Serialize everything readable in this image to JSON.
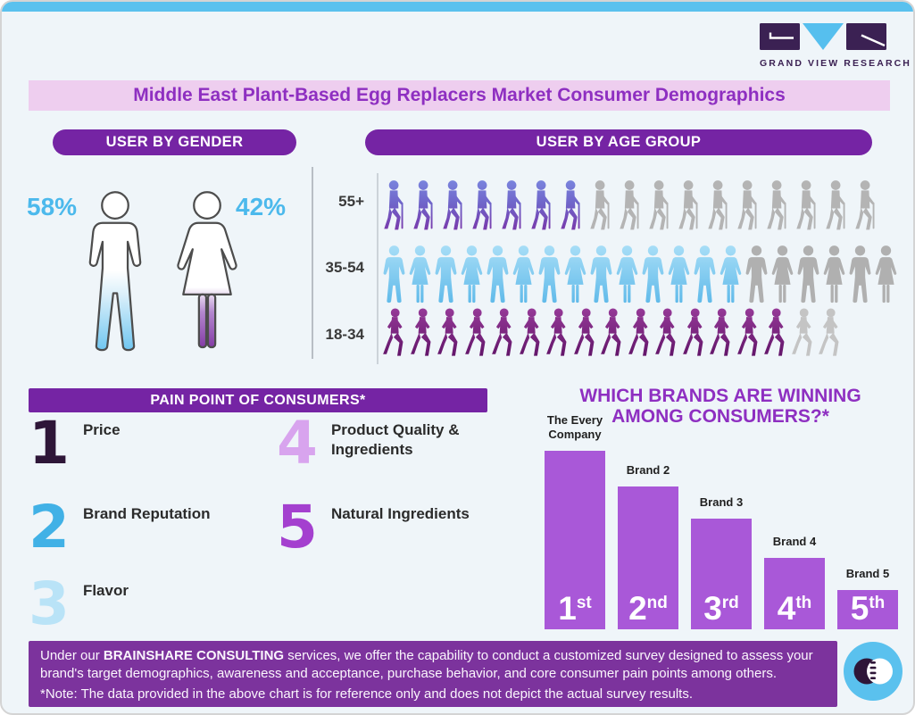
{
  "page": {
    "logo_name": "GRAND VIEW RESEARCH",
    "title": "Middle East Plant-Based Egg Replacers Market Consumer Demographics"
  },
  "sections": {
    "gender": {
      "header": "USER BY GENDER",
      "male_pct_label": "58%",
      "female_pct_label": "42%"
    },
    "age": {
      "header": "USER BY AGE GROUP"
    },
    "pain": {
      "header": "PAIN POINT OF CONSUMERS*",
      "items": [
        {
          "rank": "1",
          "label": "Price",
          "color": "#2e1638"
        },
        {
          "rank": "2",
          "label": "Brand Reputation",
          "color": "#41b1e6"
        },
        {
          "rank": "3",
          "label": "Flavor",
          "color": "#b9e3f7"
        },
        {
          "rank": "4",
          "label": "Product Quality & Ingredients",
          "color": "#d8a4ee"
        },
        {
          "rank": "5",
          "label": "Natural Ingredients",
          "color": "#a440cf"
        }
      ]
    },
    "brands": {
      "title": "WHICH BRANDS ARE WINNING AMONG CONSUMERS?*"
    }
  },
  "chart_data": [
    {
      "type": "pictograph",
      "name": "user-by-gender",
      "title": "USER BY GENDER",
      "categories": [
        "Male",
        "Female"
      ],
      "values_pct": [
        58,
        42
      ],
      "colors": [
        "#56bfee",
        "#7b2d9e"
      ]
    },
    {
      "type": "pictograph",
      "name": "user-by-age-group",
      "title": "USER BY AGE GROUP",
      "rows": [
        {
          "label": "55+",
          "icon": "elderly",
          "filled": 7,
          "total": 17
        },
        {
          "label": "35-54",
          "icon": "adult-pair",
          "filled": 14,
          "total": 20
        },
        {
          "label": "18-34",
          "icon": "walking",
          "filled": 15,
          "total": 17
        }
      ]
    },
    {
      "type": "bar",
      "name": "brand-ranking",
      "title": "WHICH BRANDS ARE WINNING AMONG CONSUMERS?*",
      "categories": [
        "The Every Company",
        "Brand 2",
        "Brand 3",
        "Brand 4",
        "Brand 5"
      ],
      "values_pct_of_max": [
        100,
        80,
        62,
        40,
        22
      ],
      "rank_labels": [
        "1st",
        "2nd",
        "3rd",
        "4th",
        "5th"
      ],
      "bar_color": "#a958d8",
      "ylabel": "",
      "xlabel": "",
      "grid": false,
      "legend": "none"
    }
  ],
  "footer": {
    "text_prefix": "Under our ",
    "text_bold": "BRAINSHARE CONSULTING",
    "text_suffix": " services, we offer the capability to conduct a customized survey designed to assess your brand's target demographics, awareness and acceptance, purchase behavior, and core consumer pain points among others.",
    "note": "*Note: The data provided in the above chart is for reference only and does not depict the actual survey results."
  }
}
